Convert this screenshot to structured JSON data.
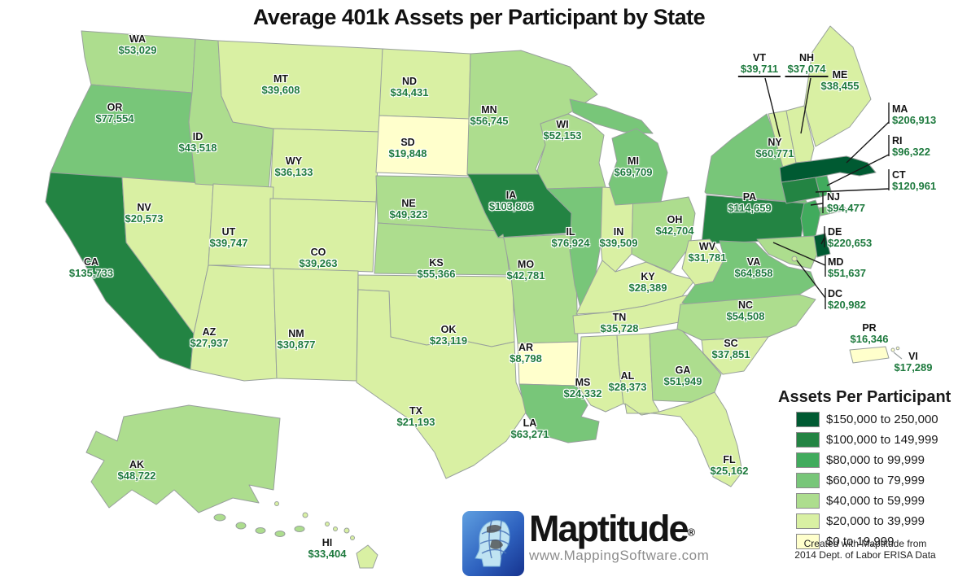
{
  "title": "Average 401k Assets per Participant by State",
  "legend": {
    "title": "Assets Per Participant",
    "items": [
      {
        "label": "$150,000 to 250,000",
        "color": "#005a32"
      },
      {
        "label": "$100,000 to 149,999",
        "color": "#238443"
      },
      {
        "label": "$80,000 to 99,999",
        "color": "#41ab5d"
      },
      {
        "label": "$60,000 to 79,999",
        "color": "#78c679"
      },
      {
        "label": "$40,000 to 59,999",
        "color": "#addd8e"
      },
      {
        "label": "$20,000 to 39,999",
        "color": "#d9f0a3"
      },
      {
        "label": "$0 to 19,999",
        "color": "#ffffcc"
      }
    ]
  },
  "map": {
    "colors": {
      "state_border": "#98a09c",
      "label_abbr": "#141414",
      "label_value": "#1e7a3e",
      "background": "#ffffff"
    },
    "states": [
      {
        "abbr": "WA",
        "value": "$53,029"
      },
      {
        "abbr": "OR",
        "value": "$77,554"
      },
      {
        "abbr": "CA",
        "value": "$135,733"
      },
      {
        "abbr": "NV",
        "value": "$20,573"
      },
      {
        "abbr": "ID",
        "value": "$43,518"
      },
      {
        "abbr": "MT",
        "value": "$39,608"
      },
      {
        "abbr": "WY",
        "value": "$36,133"
      },
      {
        "abbr": "UT",
        "value": "$39,747"
      },
      {
        "abbr": "CO",
        "value": "$39,263"
      },
      {
        "abbr": "AZ",
        "value": "$27,937"
      },
      {
        "abbr": "NM",
        "value": "$30,877"
      },
      {
        "abbr": "ND",
        "value": "$34,431"
      },
      {
        "abbr": "SD",
        "value": "$19,848"
      },
      {
        "abbr": "NE",
        "value": "$49,323"
      },
      {
        "abbr": "KS",
        "value": "$55,366"
      },
      {
        "abbr": "OK",
        "value": "$23,119"
      },
      {
        "abbr": "TX",
        "value": "$21,193"
      },
      {
        "abbr": "MN",
        "value": "$56,745"
      },
      {
        "abbr": "IA",
        "value": "$103,806"
      },
      {
        "abbr": "MO",
        "value": "$42,781"
      },
      {
        "abbr": "AR",
        "value": "$8,798"
      },
      {
        "abbr": "LA",
        "value": "$63,271"
      },
      {
        "abbr": "WI",
        "value": "$52,153"
      },
      {
        "abbr": "IL",
        "value": "$76,924"
      },
      {
        "abbr": "MS",
        "value": "$24,332"
      },
      {
        "abbr": "IN",
        "value": "$39,509"
      },
      {
        "abbr": "KY",
        "value": "$28,389"
      },
      {
        "abbr": "TN",
        "value": "$35,728"
      },
      {
        "abbr": "MI",
        "value": "$69,709"
      },
      {
        "abbr": "OH",
        "value": "$42,704"
      },
      {
        "abbr": "AL",
        "value": "$28,373"
      },
      {
        "abbr": "GA",
        "value": "$51,949"
      },
      {
        "abbr": "FL",
        "value": "$25,162"
      },
      {
        "abbr": "WV",
        "value": "$31,781"
      },
      {
        "abbr": "VA",
        "value": "$64,858"
      },
      {
        "abbr": "NC",
        "value": "$54,508"
      },
      {
        "abbr": "SC",
        "value": "$37,851"
      },
      {
        "abbr": "NY",
        "value": "$60,771"
      },
      {
        "abbr": "PA",
        "value": "$114,659"
      },
      {
        "abbr": "VT",
        "value": "$39,711"
      },
      {
        "abbr": "NH",
        "value": "$37,074"
      },
      {
        "abbr": "ME",
        "value": "$38,455"
      },
      {
        "abbr": "MA",
        "value": "$206,913"
      },
      {
        "abbr": "RI",
        "value": "$96,322"
      },
      {
        "abbr": "CT",
        "value": "$120,961"
      },
      {
        "abbr": "NJ",
        "value": "$94,477"
      },
      {
        "abbr": "DE",
        "value": "$220,653"
      },
      {
        "abbr": "MD",
        "value": "$51,637"
      },
      {
        "abbr": "DC",
        "value": "$20,982"
      },
      {
        "abbr": "PR",
        "value": "$16,346"
      },
      {
        "abbr": "VI",
        "value": "$17,289"
      },
      {
        "abbr": "AK",
        "value": "$48,722"
      },
      {
        "abbr": "HI",
        "value": "$33,404"
      }
    ]
  },
  "logo": {
    "name": "Maptitude",
    "registered": "®",
    "url": "www.MappingSoftware.com"
  },
  "footer": {
    "line1": "Created with Maptitude from",
    "line2": "2014 Dept. of Labor ERISA Data"
  }
}
